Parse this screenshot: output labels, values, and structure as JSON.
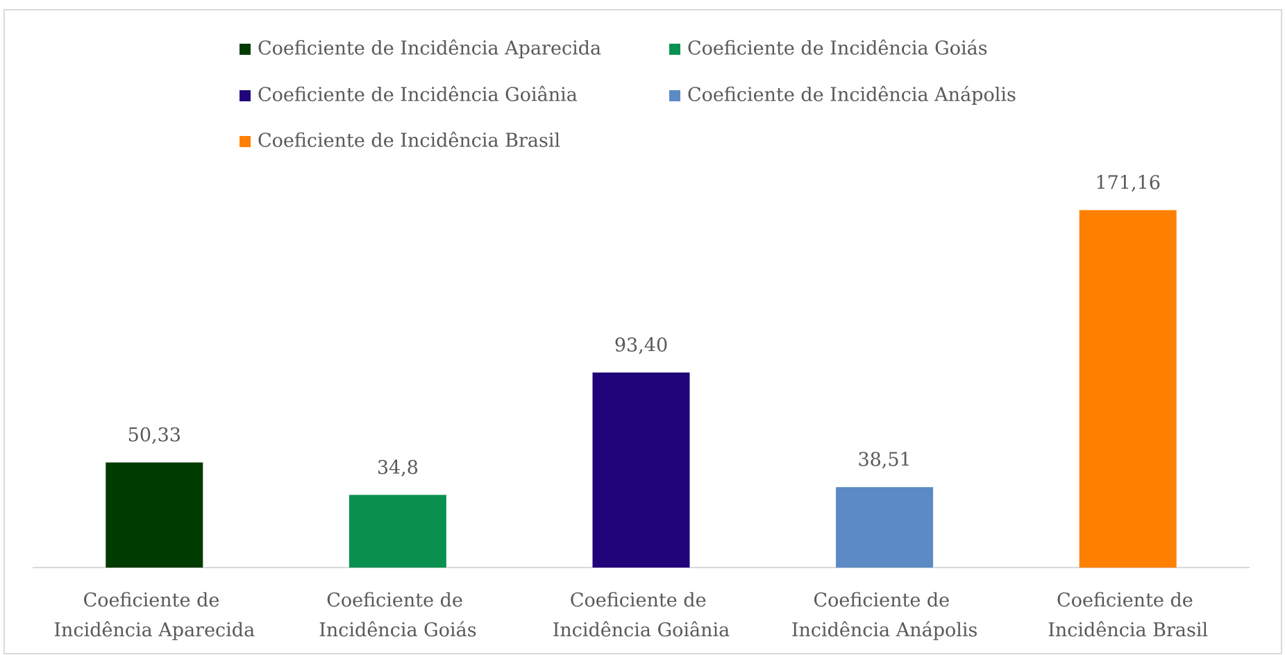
{
  "chart_data": {
    "type": "bar",
    "categories": [
      "Coeficiente de Incidência Aparecida",
      "Coeficiente de Incidência Goiás",
      "Coeficiente de Incidência Goiânia",
      "Coeficiente de Incidência Anápolis",
      "Coeficiente de Incidência Brasil"
    ],
    "values": [
      50.33,
      34.8,
      93.4,
      38.51,
      171.16
    ],
    "value_labels": [
      "50,33",
      "34,8",
      "93,40",
      "38,51",
      "171,16"
    ],
    "colors": [
      "#003b00",
      "#0a9150",
      "#22047a",
      "#5b8ac4",
      "#ff8000"
    ],
    "ylim": [
      0,
      200
    ],
    "legend": "top"
  }
}
